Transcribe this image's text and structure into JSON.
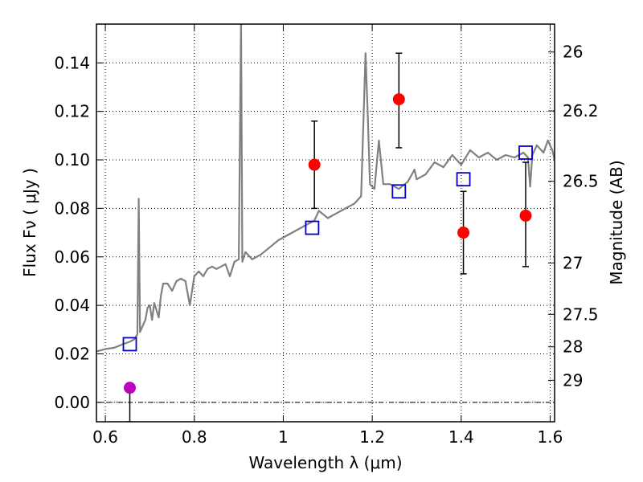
{
  "chart_data": {
    "type": "scatter",
    "xlabel": "Wavelength  λ (μm)",
    "ylabel": "Flux  Fν  ( μJy )",
    "y2label": "Magnitude (AB)",
    "xlim": [
      0.58,
      1.61
    ],
    "ylim": [
      -0.008,
      0.156
    ],
    "x_ticks": [
      {
        "value": 0.6,
        "label": "0.6"
      },
      {
        "value": 0.8,
        "label": "0.8"
      },
      {
        "value": 1.0,
        "label": "1"
      },
      {
        "value": 1.2,
        "label": "1.2"
      },
      {
        "value": 1.4,
        "label": "1.4"
      },
      {
        "value": 1.6,
        "label": "1.6"
      }
    ],
    "y_ticks": [
      {
        "value": 0.0,
        "label": "0.00"
      },
      {
        "value": 0.02,
        "label": "0.02"
      },
      {
        "value": 0.04,
        "label": "0.04"
      },
      {
        "value": 0.06,
        "label": "0.06"
      },
      {
        "value": 0.08,
        "label": "0.08"
      },
      {
        "value": 0.1,
        "label": "0.10"
      },
      {
        "value": 0.12,
        "label": "0.12"
      },
      {
        "value": 0.14,
        "label": "0.14"
      }
    ],
    "y2_ticks": [
      {
        "flux": 0.1445,
        "label": "26"
      },
      {
        "flux": 0.1202,
        "label": "26.2"
      },
      {
        "flux": 0.0912,
        "label": "26.5"
      },
      {
        "flux": 0.0575,
        "label": "27"
      },
      {
        "flux": 0.0363,
        "label": "27.5"
      },
      {
        "flux": 0.0229,
        "label": "28"
      },
      {
        "flux": 0.0091,
        "label": "29"
      }
    ],
    "grid": true,
    "zero_line": true,
    "colors": {
      "model": "#808080",
      "observed": "#ff0000",
      "upper_limit_point": "#bf00bf",
      "synthetic": "#0000cc",
      "errorbar": "#000000"
    },
    "series": [
      {
        "kind": "model",
        "points": [
          [
            0.58,
            0.021
          ],
          [
            0.6,
            0.022
          ],
          [
            0.62,
            0.0225
          ],
          [
            0.64,
            0.024
          ],
          [
            0.655,
            0.025
          ],
          [
            0.665,
            0.026
          ],
          [
            0.672,
            0.028
          ],
          [
            0.675,
            0.084
          ],
          [
            0.678,
            0.029
          ],
          [
            0.685,
            0.032
          ],
          [
            0.69,
            0.034
          ],
          [
            0.695,
            0.039
          ],
          [
            0.7,
            0.04
          ],
          [
            0.705,
            0.034
          ],
          [
            0.71,
            0.041
          ],
          [
            0.715,
            0.038
          ],
          [
            0.72,
            0.035
          ],
          [
            0.725,
            0.044
          ],
          [
            0.73,
            0.049
          ],
          [
            0.74,
            0.049
          ],
          [
            0.75,
            0.046
          ],
          [
            0.76,
            0.05
          ],
          [
            0.77,
            0.051
          ],
          [
            0.78,
            0.05
          ],
          [
            0.79,
            0.04
          ],
          [
            0.8,
            0.052
          ],
          [
            0.81,
            0.054
          ],
          [
            0.82,
            0.052
          ],
          [
            0.83,
            0.055
          ],
          [
            0.84,
            0.056
          ],
          [
            0.85,
            0.055
          ],
          [
            0.86,
            0.056
          ],
          [
            0.87,
            0.057
          ],
          [
            0.88,
            0.052
          ],
          [
            0.89,
            0.058
          ],
          [
            0.9,
            0.059
          ],
          [
            0.905,
            0.158
          ],
          [
            0.908,
            0.058
          ],
          [
            0.915,
            0.062
          ],
          [
            0.93,
            0.059
          ],
          [
            0.95,
            0.061
          ],
          [
            0.97,
            0.064
          ],
          [
            0.99,
            0.067
          ],
          [
            1.01,
            0.069
          ],
          [
            1.03,
            0.071
          ],
          [
            1.05,
            0.073
          ],
          [
            1.07,
            0.075
          ],
          [
            1.08,
            0.079
          ],
          [
            1.1,
            0.076
          ],
          [
            1.12,
            0.078
          ],
          [
            1.14,
            0.08
          ],
          [
            1.16,
            0.082
          ],
          [
            1.175,
            0.085
          ],
          [
            1.185,
            0.144
          ],
          [
            1.19,
            0.118
          ],
          [
            1.195,
            0.09
          ],
          [
            1.205,
            0.088
          ],
          [
            1.215,
            0.108
          ],
          [
            1.225,
            0.09
          ],
          [
            1.24,
            0.09
          ],
          [
            1.26,
            0.088
          ],
          [
            1.28,
            0.091
          ],
          [
            1.295,
            0.096
          ],
          [
            1.3,
            0.092
          ],
          [
            1.32,
            0.094
          ],
          [
            1.34,
            0.099
          ],
          [
            1.36,
            0.097
          ],
          [
            1.38,
            0.102
          ],
          [
            1.4,
            0.098
          ],
          [
            1.42,
            0.104
          ],
          [
            1.44,
            0.101
          ],
          [
            1.46,
            0.103
          ],
          [
            1.48,
            0.1
          ],
          [
            1.5,
            0.102
          ],
          [
            1.52,
            0.101
          ],
          [
            1.54,
            0.103
          ],
          [
            1.55,
            0.101
          ],
          [
            1.555,
            0.089
          ],
          [
            1.56,
            0.102
          ],
          [
            1.57,
            0.106
          ],
          [
            1.585,
            0.103
          ],
          [
            1.595,
            0.108
          ],
          [
            1.605,
            0.104
          ],
          [
            1.61,
            0.1
          ]
        ]
      },
      {
        "kind": "synthetic",
        "marker": "open-square",
        "points": [
          [
            0.655,
            0.024
          ],
          [
            1.065,
            0.072
          ],
          [
            1.26,
            0.087
          ],
          [
            1.405,
            0.092
          ],
          [
            1.545,
            0.103
          ]
        ]
      },
      {
        "kind": "observed",
        "marker": "filled-circle",
        "points": [
          {
            "x": 0.655,
            "y": 0.006,
            "lo": -0.008,
            "hi": null,
            "color_key": "upper_limit_point"
          },
          {
            "x": 1.07,
            "y": 0.098,
            "lo": 0.08,
            "hi": 0.116,
            "color_key": "observed"
          },
          {
            "x": 1.26,
            "y": 0.125,
            "lo": 0.105,
            "hi": 0.144,
            "color_key": "observed"
          },
          {
            "x": 1.405,
            "y": 0.07,
            "lo": 0.053,
            "hi": 0.087,
            "color_key": "observed"
          },
          {
            "x": 1.545,
            "y": 0.077,
            "lo": 0.056,
            "hi": 0.099,
            "color_key": "observed"
          }
        ]
      }
    ]
  }
}
